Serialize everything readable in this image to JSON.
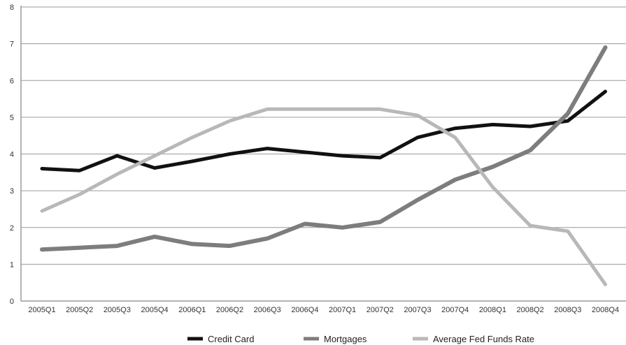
{
  "chart_data": {
    "type": "line",
    "categories": [
      "2005Q1",
      "2005Q2",
      "2005Q3",
      "2005Q4",
      "2006Q1",
      "2006Q2",
      "2006Q3",
      "2006Q4",
      "2007Q1",
      "2007Q2",
      "2007Q3",
      "2007Q4",
      "2008Q1",
      "2008Q2",
      "2008Q3",
      "2008Q4"
    ],
    "ylim": [
      0,
      8
    ],
    "yticks": [
      "0",
      "1",
      "2",
      "3",
      "4",
      "5",
      "6",
      "7",
      "8"
    ],
    "grid": true,
    "legend_position": "bottom",
    "series": [
      {
        "name": "Credit Card",
        "color": "#111111",
        "width": 5,
        "values": [
          3.6,
          3.55,
          3.95,
          3.62,
          3.8,
          4.0,
          4.15,
          4.05,
          3.95,
          3.9,
          4.45,
          4.7,
          4.8,
          4.75,
          4.9,
          5.7
        ]
      },
      {
        "name": "Mortgages",
        "color": "#7d7d7d",
        "width": 6,
        "values": [
          1.4,
          1.45,
          1.5,
          1.75,
          1.55,
          1.5,
          1.7,
          2.1,
          2.0,
          2.15,
          2.75,
          3.3,
          3.65,
          4.1,
          5.1,
          6.9
        ]
      },
      {
        "name": "Average Fed Funds Rate",
        "color": "#b8b8b8",
        "width": 5,
        "values": [
          2.45,
          2.9,
          3.45,
          3.95,
          4.45,
          4.9,
          5.22,
          5.22,
          5.22,
          5.22,
          5.05,
          4.45,
          3.1,
          2.05,
          1.9,
          0.45
        ]
      }
    ]
  }
}
